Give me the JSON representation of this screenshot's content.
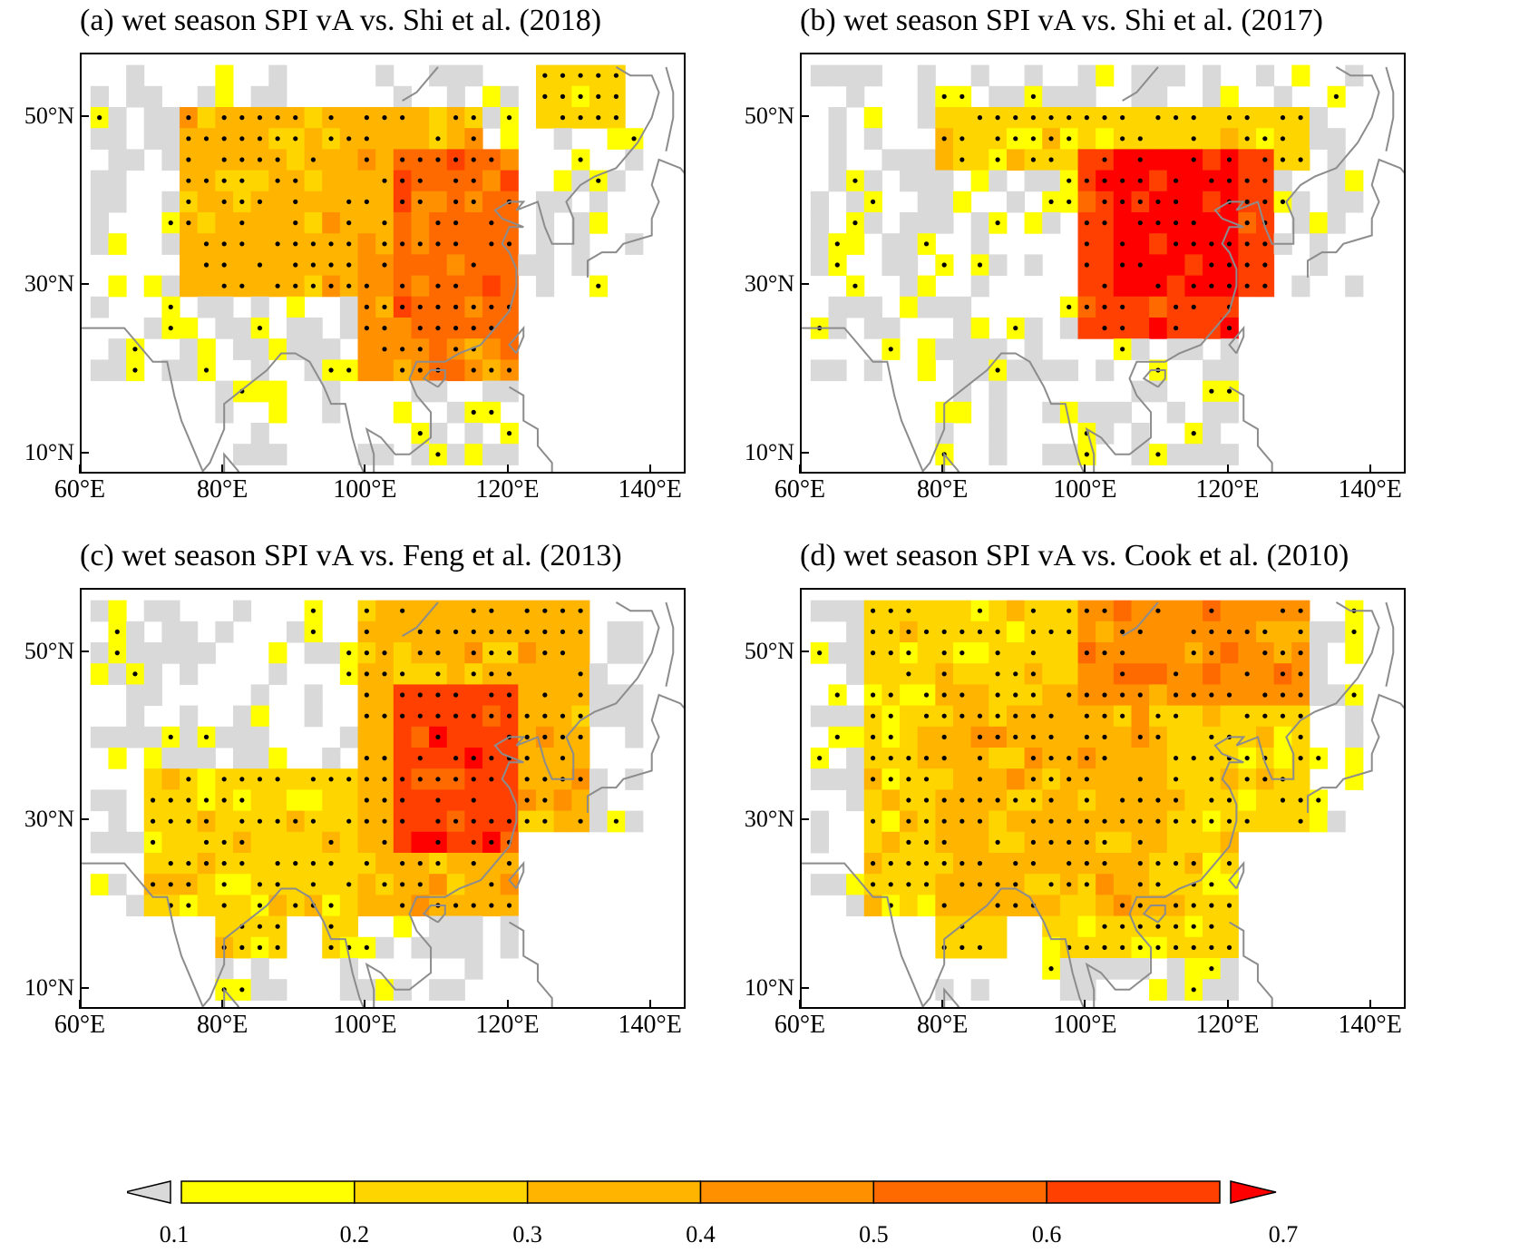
{
  "panels": [
    {
      "id": "a",
      "title": "(a) wet season SPI vA vs. Shi et al. (2018)"
    },
    {
      "id": "b",
      "title": "(b) wet season SPI vA vs. Shi et al. (2017)"
    },
    {
      "id": "c",
      "title": "(c) wet season SPI vA vs. Feng et al. (2013)"
    },
    {
      "id": "d",
      "title": "(d) wet season SPI vA vs. Cook et al. (2010)"
    }
  ],
  "axes": {
    "lat_labels": [
      "50°N",
      "30°N",
      "10°N"
    ],
    "lat_values": [
      50,
      30,
      10
    ],
    "lon_labels": [
      "60°E",
      "80°E",
      "100°E",
      "120°E",
      "140°E"
    ],
    "lon_values": [
      60,
      80,
      100,
      120,
      140
    ],
    "lat_range": [
      7.5,
      57.5
    ],
    "lon_range": [
      60,
      145
    ]
  },
  "colorbar": {
    "ticks": [
      "0.1",
      "0.2",
      "0.3",
      "0.4",
      "0.5",
      "0.6",
      "0.7"
    ],
    "colors": [
      "#ffff00",
      "#ffd500",
      "#ffb400",
      "#ff9000",
      "#ff6a00",
      "#ff4000"
    ],
    "under_color": "#d9d9d9",
    "over_color": "#ff0000"
  },
  "chart_data": {
    "type": "heatmap",
    "grid_resolution_deg": 2.5,
    "stippling": "dots mark significant grid cells",
    "value_encoding": "class index: 0 = below 0.1 (grey), 1..6 = colorbar bins 0.1-0.7, 7 = above 0.7",
    "regions": {
      "a": [
        [
          50,
          70,
          135,
          125,
          2
        ],
        [
          30,
          50,
          115,
          75,
          3
        ],
        [
          20,
          35,
          120,
          100,
          4
        ],
        [
          25,
          45,
          122,
          105,
          5
        ],
        [
          40,
          47,
          110,
          90,
          1
        ]
      ],
      "b": [
        [
          25,
          47,
          125,
          100,
          6
        ],
        [
          30,
          45,
          120,
          105,
          7
        ],
        [
          45,
          50,
          130,
          80,
          2
        ]
      ],
      "c": [
        [
          20,
          55,
          132,
          100,
          3
        ],
        [
          27,
          45,
          120,
          105,
          6
        ],
        [
          15,
          35,
          98,
          70,
          2
        ]
      ],
      "d": [
        [
          15,
          55,
          132,
          70,
          2
        ],
        [
          45,
          55,
          130,
          100,
          4
        ],
        [
          20,
          45,
          110,
          80,
          3
        ]
      ]
    }
  }
}
